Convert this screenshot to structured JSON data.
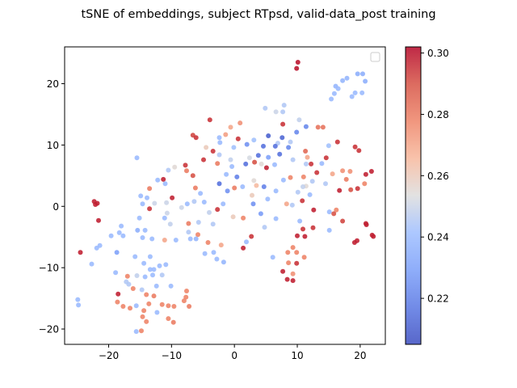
{
  "chart_data": {
    "type": "scatter",
    "title": "tSNE of embeddings, subject RTpsd, valid-data_post training",
    "xlabel": "",
    "ylabel": "",
    "xlim": [
      -27,
      24
    ],
    "ylim": [
      -22.5,
      26
    ],
    "xticks": [
      -20,
      -10,
      0,
      10,
      20
    ],
    "xtick_labels": [
      "−20",
      "−10",
      "0",
      "10",
      "20"
    ],
    "yticks": [
      -20,
      -10,
      0,
      10,
      20
    ],
    "ytick_labels": [
      "−20",
      "−10",
      "0",
      "10",
      "20"
    ],
    "grid": false,
    "legend": "top-right (empty)",
    "colormap": "coolwarm",
    "colorbar": {
      "min": 0.205,
      "max": 0.302,
      "ticks": [
        0.22,
        0.24,
        0.26,
        0.28,
        0.3
      ],
      "tick_labels": [
        "0.22",
        "0.24",
        "0.26",
        "0.28",
        "0.30"
      ]
    },
    "colors": {
      "low": "#3b4cc0",
      "mid": "#dddddd",
      "high": "#b40426"
    },
    "points": [
      {
        "x": 10.1,
        "y": 23.5,
        "c": 0.3
      },
      {
        "x": 9.9,
        "y": 22.5,
        "c": 0.3
      },
      {
        "x": 19.6,
        "y": 21.6,
        "c": 0.235
      },
      {
        "x": 20.4,
        "y": 21.6,
        "c": 0.235
      },
      {
        "x": 17.9,
        "y": 20.9,
        "c": 0.238
      },
      {
        "x": 17.2,
        "y": 20.5,
        "c": 0.238
      },
      {
        "x": 20.8,
        "y": 20.4,
        "c": 0.235
      },
      {
        "x": 16.1,
        "y": 19.6,
        "c": 0.238
      },
      {
        "x": 16.5,
        "y": 19.2,
        "c": 0.24
      },
      {
        "x": 15.9,
        "y": 18.4,
        "c": 0.24
      },
      {
        "x": 19.2,
        "y": 18.5,
        "c": 0.24
      },
      {
        "x": 20.3,
        "y": 18.5,
        "c": 0.24
      },
      {
        "x": 15.4,
        "y": 17.5,
        "c": 0.24
      },
      {
        "x": 18.7,
        "y": 17.9,
        "c": 0.24
      },
      {
        "x": 4.9,
        "y": 16.0,
        "c": 0.245
      },
      {
        "x": 7.9,
        "y": 16.5,
        "c": 0.245
      },
      {
        "x": 7.7,
        "y": 15.4,
        "c": 0.245
      },
      {
        "x": 6.6,
        "y": 15.4,
        "c": 0.25
      },
      {
        "x": 10.3,
        "y": 14.1,
        "c": 0.248
      },
      {
        "x": -3.9,
        "y": 14.1,
        "c": 0.295
      },
      {
        "x": 0.9,
        "y": 13.6,
        "c": 0.275
      },
      {
        "x": 7.7,
        "y": 13.4,
        "c": 0.295
      },
      {
        "x": 11.4,
        "y": 13.0,
        "c": 0.222
      },
      {
        "x": 13.3,
        "y": 12.9,
        "c": 0.282
      },
      {
        "x": 14.1,
        "y": 12.9,
        "c": 0.282
      },
      {
        "x": -0.6,
        "y": 12.9,
        "c": 0.27
      },
      {
        "x": 9.9,
        "y": 12.1,
        "c": 0.222
      },
      {
        "x": -6.6,
        "y": 11.6,
        "c": 0.292
      },
      {
        "x": -6.1,
        "y": 11.2,
        "c": 0.295
      },
      {
        "x": -1.4,
        "y": 11.7,
        "c": 0.272
      },
      {
        "x": 5.4,
        "y": 11.5,
        "c": 0.21
      },
      {
        "x": 0.6,
        "y": 11.0,
        "c": 0.295
      },
      {
        "x": 7.6,
        "y": 11.2,
        "c": 0.212
      },
      {
        "x": -2.4,
        "y": 11.2,
        "c": 0.24
      },
      {
        "x": 3.1,
        "y": 10.8,
        "c": 0.242
      },
      {
        "x": 6.9,
        "y": 10.3,
        "c": 0.245
      },
      {
        "x": 8.9,
        "y": 10.5,
        "c": 0.245
      },
      {
        "x": -2.3,
        "y": 10.4,
        "c": 0.24
      },
      {
        "x": 2.0,
        "y": 10.1,
        "c": 0.225
      },
      {
        "x": 16.4,
        "y": 10.5,
        "c": 0.295
      },
      {
        "x": 15.0,
        "y": 9.9,
        "c": 0.242
      },
      {
        "x": 4.6,
        "y": 9.8,
        "c": 0.215
      },
      {
        "x": 6.5,
        "y": 9.8,
        "c": 0.215
      },
      {
        "x": 19.2,
        "y": 9.7,
        "c": 0.295
      },
      {
        "x": -0.1,
        "y": 9.6,
        "c": 0.242
      },
      {
        "x": -4.5,
        "y": 9.6,
        "c": 0.26
      },
      {
        "x": 8.6,
        "y": 9.6,
        "c": 0.222
      },
      {
        "x": 19.8,
        "y": 9.1,
        "c": 0.295
      },
      {
        "x": 11.3,
        "y": 9.0,
        "c": 0.285
      },
      {
        "x": -3.4,
        "y": 9.0,
        "c": 0.295
      },
      {
        "x": 3.8,
        "y": 8.3,
        "c": 0.215
      },
      {
        "x": 7.2,
        "y": 8.5,
        "c": 0.215
      },
      {
        "x": -2.4,
        "y": 8.4,
        "c": 0.245
      },
      {
        "x": 5.4,
        "y": 8.0,
        "c": 0.23
      },
      {
        "x": 11.6,
        "y": 8.0,
        "c": 0.27
      },
      {
        "x": 14.6,
        "y": 7.9,
        "c": 0.295
      },
      {
        "x": -0.6,
        "y": 7.6,
        "c": 0.248
      },
      {
        "x": 2.4,
        "y": 7.9,
        "c": 0.252
      },
      {
        "x": 3.2,
        "y": 7.2,
        "c": 0.29
      },
      {
        "x": 9.3,
        "y": 7.6,
        "c": 0.245
      },
      {
        "x": -4.9,
        "y": 7.6,
        "c": 0.295
      },
      {
        "x": -15.5,
        "y": 7.9,
        "c": 0.24
      },
      {
        "x": -2.7,
        "y": 7.0,
        "c": 0.28
      },
      {
        "x": 1.8,
        "y": 6.9,
        "c": 0.215
      },
      {
        "x": 4.3,
        "y": 6.9,
        "c": 0.255
      },
      {
        "x": 6.4,
        "y": 6.8,
        "c": 0.24
      },
      {
        "x": 11.4,
        "y": 6.9,
        "c": 0.245
      },
      {
        "x": 12.2,
        "y": 6.9,
        "c": 0.295
      },
      {
        "x": 13.9,
        "y": 7.0,
        "c": 0.24
      },
      {
        "x": -7.8,
        "y": 6.7,
        "c": 0.295
      },
      {
        "x": -9.5,
        "y": 6.4,
        "c": 0.255
      },
      {
        "x": -0.4,
        "y": 6.5,
        "c": 0.24
      },
      {
        "x": 5.1,
        "y": 6.3,
        "c": 0.298
      },
      {
        "x": -10.5,
        "y": 5.9,
        "c": 0.245
      },
      {
        "x": -7.6,
        "y": 5.8,
        "c": 0.28
      },
      {
        "x": 17.2,
        "y": 5.8,
        "c": 0.275
      },
      {
        "x": 18.4,
        "y": 5.7,
        "c": 0.275
      },
      {
        "x": 21.8,
        "y": 5.7,
        "c": 0.298
      },
      {
        "x": 13.1,
        "y": 5.5,
        "c": 0.295
      },
      {
        "x": 15.6,
        "y": 5.3,
        "c": 0.27
      },
      {
        "x": -1.3,
        "y": 5.2,
        "c": 0.24
      },
      {
        "x": 20.9,
        "y": 5.2,
        "c": 0.298
      },
      {
        "x": -6.6,
        "y": 5.0,
        "c": 0.29
      },
      {
        "x": 0.4,
        "y": 4.8,
        "c": 0.22
      },
      {
        "x": 8.9,
        "y": 4.7,
        "c": 0.278
      },
      {
        "x": 11.0,
        "y": 4.8,
        "c": 0.278
      },
      {
        "x": -12.2,
        "y": 4.3,
        "c": 0.24
      },
      {
        "x": -11.3,
        "y": 4.4,
        "c": 0.298
      },
      {
        "x": 7.8,
        "y": 4.3,
        "c": 0.24
      },
      {
        "x": 12.4,
        "y": 4.1,
        "c": 0.245
      },
      {
        "x": 17.8,
        "y": 4.4,
        "c": 0.28
      },
      {
        "x": 3.1,
        "y": 4.2,
        "c": 0.255
      },
      {
        "x": 3.5,
        "y": 3.4,
        "c": 0.265
      },
      {
        "x": -11.0,
        "y": 3.7,
        "c": 0.24
      },
      {
        "x": 20.7,
        "y": 3.7,
        "c": 0.278
      },
      {
        "x": 14.5,
        "y": 3.7,
        "c": 0.245
      },
      {
        "x": 11.4,
        "y": 3.3,
        "c": 0.255
      },
      {
        "x": -2.4,
        "y": 3.7,
        "c": 0.215
      },
      {
        "x": 0.0,
        "y": 3.0,
        "c": 0.28
      },
      {
        "x": 1.3,
        "y": 3.2,
        "c": 0.24
      },
      {
        "x": 4.7,
        "y": 3.2,
        "c": 0.22
      },
      {
        "x": 10.9,
        "y": 3.2,
        "c": 0.248
      },
      {
        "x": -6.2,
        "y": 3.0,
        "c": 0.28
      },
      {
        "x": -13.5,
        "y": 2.9,
        "c": 0.28
      },
      {
        "x": -1.1,
        "y": 2.5,
        "c": 0.225
      },
      {
        "x": 6.6,
        "y": 2.5,
        "c": 0.24
      },
      {
        "x": 10.1,
        "y": 2.3,
        "c": 0.245
      },
      {
        "x": 16.7,
        "y": 2.6,
        "c": 0.298
      },
      {
        "x": 18.5,
        "y": 2.7,
        "c": 0.29
      },
      {
        "x": 19.6,
        "y": 2.9,
        "c": 0.295
      },
      {
        "x": -5.4,
        "y": 2.1,
        "c": 0.24
      },
      {
        "x": 2.8,
        "y": 1.8,
        "c": 0.26
      },
      {
        "x": 12.0,
        "y": 1.9,
        "c": 0.24
      },
      {
        "x": -14.9,
        "y": 1.7,
        "c": 0.24
      },
      {
        "x": -13.9,
        "y": 1.4,
        "c": 0.24
      },
      {
        "x": -9.9,
        "y": 1.4,
        "c": 0.298
      },
      {
        "x": -22.3,
        "y": 0.8,
        "c": 0.298
      },
      {
        "x": -21.8,
        "y": 0.5,
        "c": 0.298
      },
      {
        "x": 5.3,
        "y": 1.2,
        "c": 0.24
      },
      {
        "x": 10.8,
        "y": 0.9,
        "c": 0.295
      },
      {
        "x": -6.4,
        "y": 0.8,
        "c": 0.245
      },
      {
        "x": -4.8,
        "y": 0.7,
        "c": 0.24
      },
      {
        "x": 3.0,
        "y": 0.4,
        "c": 0.225
      },
      {
        "x": -10.8,
        "y": 0.6,
        "c": 0.25
      },
      {
        "x": -12.7,
        "y": 0.5,
        "c": 0.25
      },
      {
        "x": 8.3,
        "y": 0.4,
        "c": 0.27
      },
      {
        "x": 9.2,
        "y": 0.2,
        "c": 0.245
      },
      {
        "x": -7.5,
        "y": 0.4,
        "c": 0.24
      },
      {
        "x": -14.6,
        "y": 0.4,
        "c": 0.24
      },
      {
        "x": -1.8,
        "y": 0.4,
        "c": 0.24
      },
      {
        "x": -22.1,
        "y": 0.3,
        "c": 0.298
      },
      {
        "x": -8.4,
        "y": -0.2,
        "c": 0.25
      },
      {
        "x": -13.5,
        "y": -0.4,
        "c": 0.295
      },
      {
        "x": -2.7,
        "y": -0.5,
        "c": 0.295
      },
      {
        "x": 12.6,
        "y": -0.6,
        "c": 0.298
      },
      {
        "x": 16.2,
        "y": -0.6,
        "c": 0.278
      },
      {
        "x": 15.1,
        "y": -0.9,
        "c": 0.24
      },
      {
        "x": 4.2,
        "y": -1.2,
        "c": 0.228
      },
      {
        "x": -10.7,
        "y": -1.1,
        "c": 0.25
      },
      {
        "x": -4.0,
        "y": -1.0,
        "c": 0.248
      },
      {
        "x": 15.8,
        "y": -1.2,
        "c": 0.29
      },
      {
        "x": -0.2,
        "y": -1.7,
        "c": 0.26
      },
      {
        "x": -11.1,
        "y": -1.9,
        "c": 0.24
      },
      {
        "x": -21.6,
        "y": -2.3,
        "c": 0.298
      },
      {
        "x": 1.4,
        "y": -1.9,
        "c": 0.278
      },
      {
        "x": -15.1,
        "y": -1.9,
        "c": 0.24
      },
      {
        "x": 6.6,
        "y": -2.0,
        "c": 0.24
      },
      {
        "x": 10.4,
        "y": -2.4,
        "c": 0.24
      },
      {
        "x": 17.2,
        "y": -2.4,
        "c": 0.292
      },
      {
        "x": -7.3,
        "y": -2.8,
        "c": 0.28
      },
      {
        "x": -5.7,
        "y": -2.6,
        "c": 0.245
      },
      {
        "x": -3.4,
        "y": -2.9,
        "c": 0.245
      },
      {
        "x": 20.9,
        "y": -2.8,
        "c": 0.298
      },
      {
        "x": -10.2,
        "y": -2.9,
        "c": 0.248
      },
      {
        "x": 21.0,
        "y": -3.0,
        "c": 0.298
      },
      {
        "x": -18.0,
        "y": -3.2,
        "c": 0.24
      },
      {
        "x": 4.8,
        "y": -3.4,
        "c": 0.245
      },
      {
        "x": 12.5,
        "y": -3.5,
        "c": 0.295
      },
      {
        "x": 10.9,
        "y": -3.7,
        "c": 0.295
      },
      {
        "x": -15.4,
        "y": -3.9,
        "c": 0.235
      },
      {
        "x": -14.2,
        "y": -3.9,
        "c": 0.24
      },
      {
        "x": 15.1,
        "y": -3.9,
        "c": 0.24
      },
      {
        "x": -7.3,
        "y": -4.2,
        "c": 0.245
      },
      {
        "x": -18.3,
        "y": -4.3,
        "c": 0.24
      },
      {
        "x": -5.8,
        "y": -4.6,
        "c": 0.278
      },
      {
        "x": 2.7,
        "y": -4.9,
        "c": 0.295
      },
      {
        "x": 10.0,
        "y": -4.8,
        "c": 0.298
      },
      {
        "x": 11.2,
        "y": -4.9,
        "c": 0.298
      },
      {
        "x": 21.9,
        "y": -4.7,
        "c": 0.298
      },
      {
        "x": 22.1,
        "y": -4.9,
        "c": 0.298
      },
      {
        "x": -19.6,
        "y": -4.8,
        "c": 0.24
      },
      {
        "x": -17.7,
        "y": -4.8,
        "c": 0.24
      },
      {
        "x": -14.6,
        "y": -5.1,
        "c": 0.24
      },
      {
        "x": -6.1,
        "y": -5.3,
        "c": 0.238
      },
      {
        "x": -13.1,
        "y": -5.3,
        "c": 0.24
      },
      {
        "x": -11.1,
        "y": -5.5,
        "c": 0.27
      },
      {
        "x": -9.3,
        "y": -5.5,
        "c": 0.24
      },
      {
        "x": -7.0,
        "y": -5.3,
        "c": 0.24
      },
      {
        "x": 1.9,
        "y": -5.8,
        "c": 0.24
      },
      {
        "x": -21.4,
        "y": -6.4,
        "c": 0.24
      },
      {
        "x": -2.1,
        "y": -6.3,
        "c": 0.27
      },
      {
        "x": -4.2,
        "y": -5.9,
        "c": 0.278
      },
      {
        "x": 19.1,
        "y": -5.9,
        "c": 0.298
      },
      {
        "x": 19.5,
        "y": -5.6,
        "c": 0.298
      },
      {
        "x": -21.9,
        "y": -6.8,
        "c": 0.24
      },
      {
        "x": 9.3,
        "y": -6.7,
        "c": 0.278
      },
      {
        "x": 1.4,
        "y": -6.8,
        "c": 0.298
      },
      {
        "x": 9.9,
        "y": -7.5,
        "c": 0.278
      },
      {
        "x": -3.3,
        "y": -7.5,
        "c": 0.24
      },
      {
        "x": 8.5,
        "y": -7.5,
        "c": 0.278
      },
      {
        "x": -24.5,
        "y": -7.5,
        "c": 0.298
      },
      {
        "x": -18.7,
        "y": -7.5,
        "c": 0.23
      },
      {
        "x": -4.7,
        "y": -7.7,
        "c": 0.24
      },
      {
        "x": 6.1,
        "y": -8.3,
        "c": 0.24
      },
      {
        "x": 11.1,
        "y": -8.3,
        "c": 0.278
      },
      {
        "x": -15.8,
        "y": -8.2,
        "c": 0.24
      },
      {
        "x": -13.4,
        "y": -8.2,
        "c": 0.24
      },
      {
        "x": -2.8,
        "y": -8.6,
        "c": 0.24
      },
      {
        "x": -1.7,
        "y": -9.1,
        "c": 0.238
      },
      {
        "x": -22.7,
        "y": -9.4,
        "c": 0.24
      },
      {
        "x": 8.6,
        "y": -9.2,
        "c": 0.278
      },
      {
        "x": -14.4,
        "y": -9.3,
        "c": 0.24
      },
      {
        "x": 9.9,
        "y": -9.3,
        "c": 0.295
      },
      {
        "x": -11.9,
        "y": -9.7,
        "c": 0.24
      },
      {
        "x": -10.9,
        "y": -9.5,
        "c": 0.24
      },
      {
        "x": -12.8,
        "y": -10.3,
        "c": 0.24
      },
      {
        "x": -13.4,
        "y": -10.3,
        "c": 0.24
      },
      {
        "x": -18.9,
        "y": -10.8,
        "c": 0.24
      },
      {
        "x": 7.7,
        "y": -10.6,
        "c": 0.298
      },
      {
        "x": 9.3,
        "y": -11.0,
        "c": 0.275
      },
      {
        "x": -17.0,
        "y": -11.4,
        "c": 0.278
      },
      {
        "x": -15.5,
        "y": -11.3,
        "c": 0.248
      },
      {
        "x": -13.0,
        "y": -11.2,
        "c": 0.24
      },
      {
        "x": -11.5,
        "y": -11.2,
        "c": 0.245
      },
      {
        "x": -14.2,
        "y": -11.5,
        "c": 0.24
      },
      {
        "x": 8.4,
        "y": -11.9,
        "c": 0.298
      },
      {
        "x": 9.3,
        "y": -12.1,
        "c": 0.298
      },
      {
        "x": -17.2,
        "y": -12.3,
        "c": 0.245
      },
      {
        "x": -16.8,
        "y": -12.7,
        "c": 0.245
      },
      {
        "x": -12.4,
        "y": -13.0,
        "c": 0.24
      },
      {
        "x": -10.1,
        "y": -13.0,
        "c": 0.24
      },
      {
        "x": -16.1,
        "y": -13.4,
        "c": 0.278
      },
      {
        "x": -14.7,
        "y": -13.6,
        "c": 0.245
      },
      {
        "x": -7.6,
        "y": -13.8,
        "c": 0.278
      },
      {
        "x": -18.5,
        "y": -14.3,
        "c": 0.298
      },
      {
        "x": -14.0,
        "y": -14.4,
        "c": 0.278
      },
      {
        "x": -7.7,
        "y": -14.8,
        "c": 0.278
      },
      {
        "x": -12.8,
        "y": -14.6,
        "c": 0.28
      },
      {
        "x": -8.0,
        "y": -15.4,
        "c": 0.278
      },
      {
        "x": -24.9,
        "y": -15.2,
        "c": 0.24
      },
      {
        "x": -18.6,
        "y": -15.6,
        "c": 0.278
      },
      {
        "x": -13.6,
        "y": -15.9,
        "c": 0.278
      },
      {
        "x": -24.8,
        "y": -16.1,
        "c": 0.24
      },
      {
        "x": -17.7,
        "y": -16.3,
        "c": 0.278
      },
      {
        "x": -15.6,
        "y": -16.2,
        "c": 0.24
      },
      {
        "x": -11.5,
        "y": -16.0,
        "c": 0.278
      },
      {
        "x": -10.5,
        "y": -16.2,
        "c": 0.278
      },
      {
        "x": -9.6,
        "y": -16.3,
        "c": 0.278
      },
      {
        "x": -7.2,
        "y": -16.3,
        "c": 0.28
      },
      {
        "x": -16.6,
        "y": -16.6,
        "c": 0.278
      },
      {
        "x": -14.4,
        "y": -17.0,
        "c": 0.278
      },
      {
        "x": -12.3,
        "y": -17.3,
        "c": 0.24
      },
      {
        "x": -14.6,
        "y": -18.0,
        "c": 0.278
      },
      {
        "x": -10.5,
        "y": -18.3,
        "c": 0.278
      },
      {
        "x": -14.0,
        "y": -18.8,
        "c": 0.278
      },
      {
        "x": -9.7,
        "y": -18.9,
        "c": 0.28
      },
      {
        "x": -15.6,
        "y": -20.4,
        "c": 0.24
      },
      {
        "x": -14.8,
        "y": -20.3,
        "c": 0.278
      }
    ]
  }
}
